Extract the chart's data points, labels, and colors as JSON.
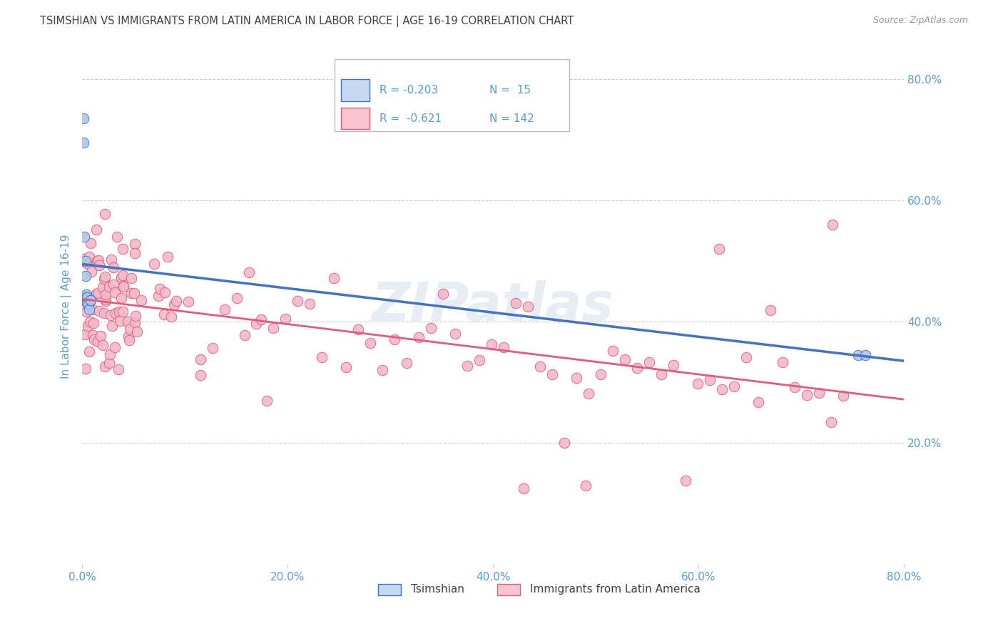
{
  "title": "TSIMSHIAN VS IMMIGRANTS FROM LATIN AMERICA IN LABOR FORCE | AGE 16-19 CORRELATION CHART",
  "source": "Source: ZipAtlas.com",
  "ylabel": "In Labor Force | Age 16-19",
  "xmin": 0.0,
  "xmax": 0.8,
  "ymin": 0.0,
  "ymax": 0.85,
  "yticks": [
    0.2,
    0.4,
    0.6,
    0.8
  ],
  "xticks": [
    0.0,
    0.2,
    0.4,
    0.6,
    0.8
  ],
  "xtick_labels": [
    "0.0%",
    "20.0%",
    "40.0%",
    "60.0%",
    "80.0%"
  ],
  "ytick_labels": [
    "20.0%",
    "40.0%",
    "60.0%",
    "80.0%"
  ],
  "R_tsimshian": -0.203,
  "N_tsimshian": 15,
  "R_latin": -0.621,
  "N_latin": 142,
  "color_tsimshian_scatter": "#aec6e8",
  "color_tsimshian_line": "#4472c4",
  "color_latin_scatter": "#f4b8c8",
  "color_latin_line": "#e05c7a",
  "color_legend_tsimshian_fill": "#c5d9f1",
  "color_legend_latin_fill": "#f9c6d0",
  "background_color": "#ffffff",
  "grid_color": "#cccccc",
  "watermark": "ZIPatlas",
  "title_color": "#404040",
  "tick_label_color": "#5b9bd5",
  "legend_text_color_label": "#404040",
  "legend_text_color_value": "#5b9bd5"
}
